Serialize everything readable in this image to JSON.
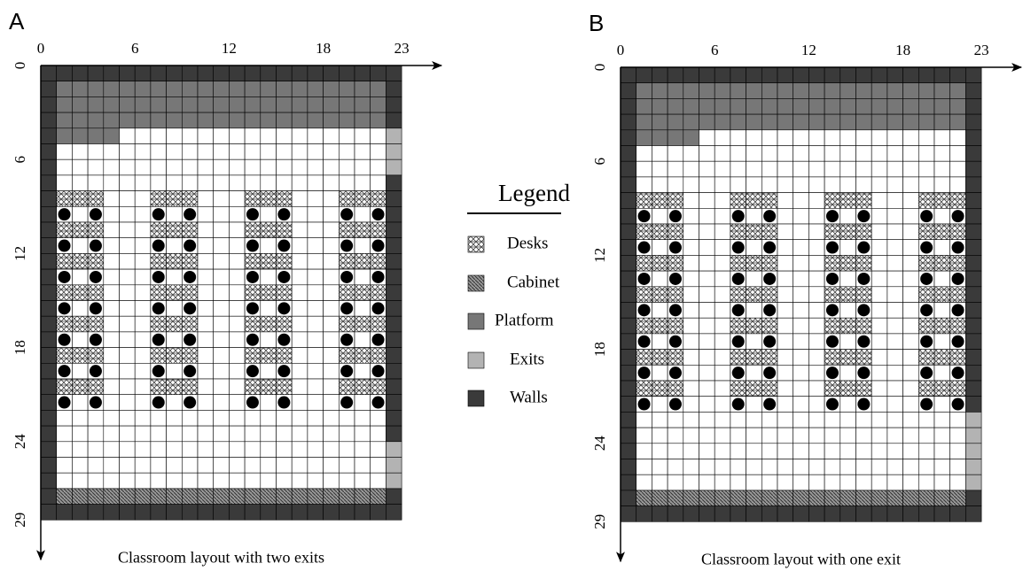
{
  "panels": [
    {
      "label": "A",
      "x_ticks": [
        0,
        6,
        12,
        18,
        23
      ],
      "y_ticks": [
        0,
        6,
        12,
        18,
        24,
        29
      ],
      "caption": "Classroom layout with two exits"
    },
    {
      "label": "B",
      "x_ticks": [
        0,
        6,
        12,
        18,
        23
      ],
      "y_ticks": [
        0,
        6,
        12,
        18,
        24,
        29
      ],
      "caption": "Classroom layout with one exit"
    }
  ],
  "legend": {
    "title": "Legend",
    "items": [
      "Desks",
      "Cabinet",
      "Platform",
      "Exits",
      "Walls"
    ]
  }
}
